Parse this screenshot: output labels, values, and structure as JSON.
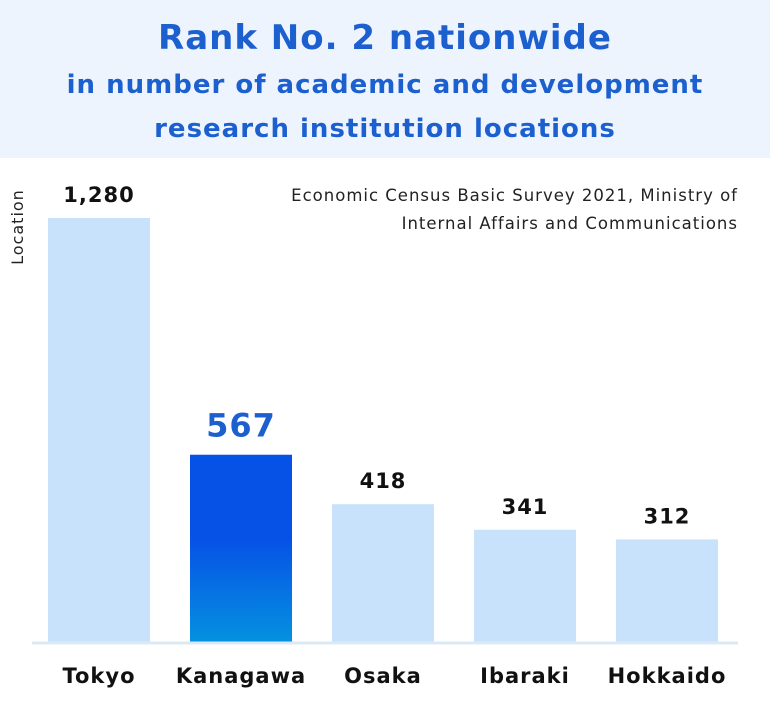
{
  "header": {
    "title": "Rank No. 2 nationwide",
    "subtitle_line1": "in number of academic and development",
    "subtitle_line2": "research institution locations"
  },
  "source": {
    "line1": "Economic Census Basic Survey 2021, Ministry of",
    "line2": "Internal Affairs and Communications"
  },
  "colors": {
    "header_bg": "#eef4fd",
    "title": "#1c5fcf",
    "bar": "#c8e2fb",
    "highlight_top": "#0652e6",
    "highlight_bottom": "#0592e0",
    "highlight_label": "#1c5fcf"
  },
  "chart_data": {
    "type": "bar",
    "title": "Rank No. 2 nationwide",
    "subtitle": "in number of academic and development research institution locations",
    "xlabel": "",
    "ylabel": "Location",
    "categories": [
      "Tokyo",
      "Kanagawa",
      "Osaka",
      "Ibaraki",
      "Hokkaido"
    ],
    "values": [
      1280,
      567,
      418,
      341,
      312
    ],
    "value_labels": [
      "1,280",
      "567",
      "418",
      "341",
      "312"
    ],
    "highlight": "Kanagawa",
    "ylim": [
      0,
      1280
    ],
    "grid": false,
    "legend": "none"
  }
}
